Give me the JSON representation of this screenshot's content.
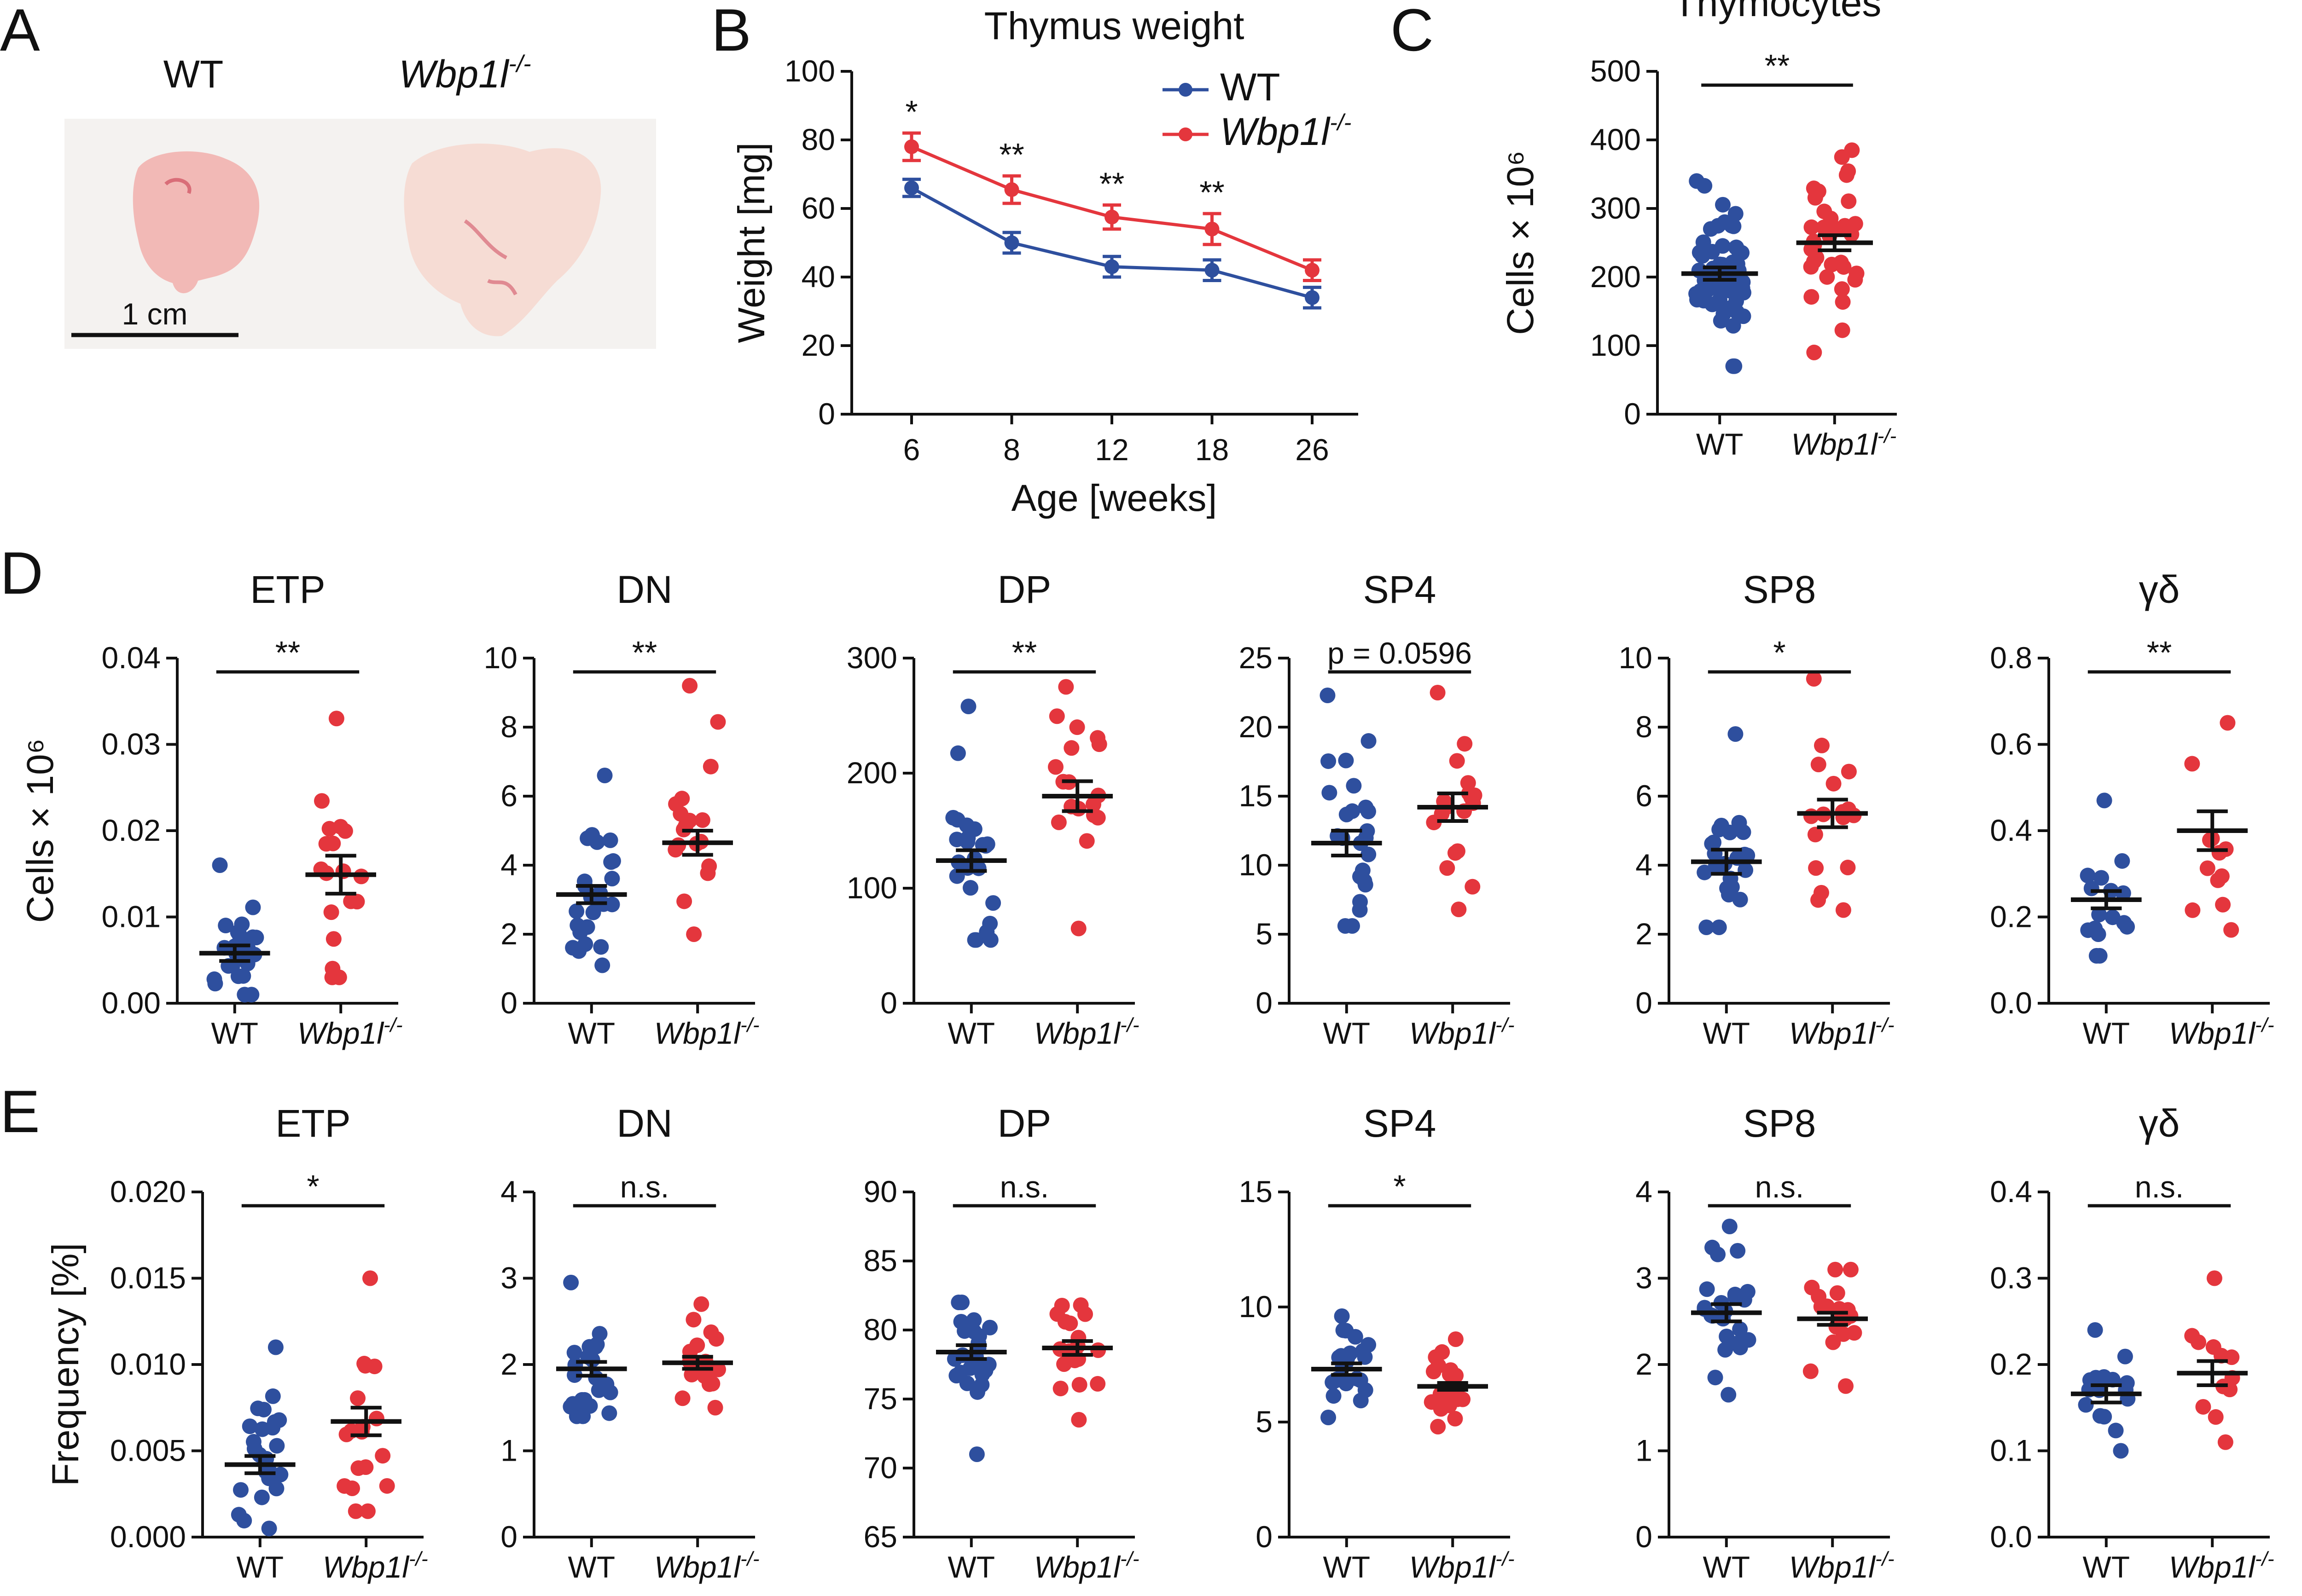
{
  "panels": {
    "A": "A",
    "B": "B",
    "C": "C",
    "D": "D",
    "E": "E"
  },
  "colors": {
    "wt": "#2e4f9e",
    "ko": "#e4363d",
    "axis": "#111111"
  },
  "panelA": {
    "wt_label": "WT",
    "ko_label": "Wbp1l",
    "ko_sup": "-/-",
    "scalebar_label": "1 cm"
  },
  "genotypes": {
    "wt": "WT",
    "ko": "Wbp1l",
    "ko_sup": "-/-"
  },
  "chart_data": [
    {
      "id": "B",
      "type": "line",
      "title": "Thymus weight",
      "xlabel": "Age [weeks]",
      "ylabel": "Weight [mg]",
      "categories": [
        "6",
        "8",
        "12",
        "18",
        "26"
      ],
      "ylim": [
        0,
        100
      ],
      "yticks": [
        0,
        20,
        40,
        60,
        80,
        100
      ],
      "series": [
        {
          "name": "WT",
          "values": [
            66,
            50,
            43,
            42,
            34
          ],
          "err": [
            2.5,
            3,
            3,
            3,
            3
          ]
        },
        {
          "name": "Wbp1l-/-",
          "values": [
            78,
            65.5,
            57.5,
            54,
            42
          ],
          "err": [
            4,
            4,
            3.5,
            4.5,
            3
          ]
        }
      ],
      "significance": [
        "*",
        "**",
        "**",
        "**",
        ""
      ],
      "legend": [
        "WT",
        "Wbp1l-/-"
      ]
    },
    {
      "id": "C",
      "type": "scatter",
      "title": "Thymocytes",
      "ylabel": "Cells × 10⁶",
      "ylim": [
        0,
        500
      ],
      "yticks": [
        0,
        100,
        200,
        300,
        400,
        500
      ],
      "ytick_labels": [
        "0",
        "100",
        "200",
        "300",
        "400",
        "500"
      ],
      "wt": {
        "mean": 205,
        "sem": 9,
        "range": [
          70,
          340
        ],
        "n": 60
      },
      "ko": {
        "mean": 250,
        "sem": 11,
        "range": [
          90,
          385
        ],
        "n": 36
      },
      "sig": "**"
    },
    {
      "id": "D-ETP",
      "type": "scatter",
      "title": "ETP",
      "ylabel": "Cells × 10⁶",
      "ylim": [
        0,
        0.04
      ],
      "yticks": [
        0,
        0.01,
        0.02,
        0.03,
        0.04
      ],
      "ytick_labels": [
        "0.00",
        "0.01",
        "0.02",
        "0.03",
        "0.04"
      ],
      "wt": {
        "mean": 0.0058,
        "sem": 0.0009,
        "range": [
          0.001,
          0.016
        ],
        "n": 24
      },
      "ko": {
        "mean": 0.0149,
        "sem": 0.0022,
        "range": [
          0.003,
          0.033
        ],
        "n": 18
      },
      "sig": "**"
    },
    {
      "id": "D-DN",
      "type": "scatter",
      "title": "DN",
      "ylabel": "",
      "ylim": [
        0,
        10
      ],
      "yticks": [
        0,
        2,
        4,
        6,
        8,
        10
      ],
      "ytick_labels": [
        "0",
        "2",
        "4",
        "6",
        "8",
        "10"
      ],
      "wt": {
        "mean": 3.15,
        "sem": 0.25,
        "range": [
          1.1,
          6.6
        ],
        "n": 24
      },
      "ko": {
        "mean": 4.65,
        "sem": 0.35,
        "range": [
          2.0,
          9.2
        ],
        "n": 18
      },
      "sig": "**"
    },
    {
      "id": "D-DP",
      "type": "scatter",
      "title": "DP",
      "ylabel": "",
      "ylim": [
        0,
        300
      ],
      "yticks": [
        0,
        100,
        200,
        300
      ],
      "ytick_labels": [
        "0",
        "100",
        "200",
        "300"
      ],
      "wt": {
        "mean": 124,
        "sem": 9,
        "range": [
          55,
          258
        ],
        "n": 24
      },
      "ko": {
        "mean": 180,
        "sem": 13,
        "range": [
          65,
          275
        ],
        "n": 18
      },
      "sig": "**"
    },
    {
      "id": "D-SP4",
      "type": "scatter",
      "title": "SP4",
      "ylabel": "",
      "ylim": [
        0,
        25
      ],
      "yticks": [
        0,
        5,
        10,
        15,
        20,
        25
      ],
      "ytick_labels": [
        "0",
        "5",
        "10",
        "15",
        "20",
        "25"
      ],
      "wt": {
        "mean": 11.6,
        "sem": 0.9,
        "range": [
          5.6,
          22.3
        ],
        "n": 24
      },
      "ko": {
        "mean": 14.2,
        "sem": 1.0,
        "range": [
          6.8,
          22.5
        ],
        "n": 18
      },
      "sig": "p = 0.0596"
    },
    {
      "id": "D-SP8",
      "type": "scatter",
      "title": "SP8",
      "ylabel": "",
      "ylim": [
        0,
        10
      ],
      "yticks": [
        0,
        2,
        4,
        6,
        8,
        10
      ],
      "ytick_labels": [
        "0",
        "2",
        "4",
        "6",
        "8",
        "10"
      ],
      "wt": {
        "mean": 4.1,
        "sem": 0.35,
        "range": [
          2.2,
          7.8
        ],
        "n": 24
      },
      "ko": {
        "mean": 5.5,
        "sem": 0.4,
        "range": [
          2.7,
          9.4
        ],
        "n": 18
      },
      "sig": "*"
    },
    {
      "id": "D-gd",
      "type": "scatter",
      "title": "γδ",
      "ylabel": "",
      "ylim": [
        0,
        0.8
      ],
      "yticks": [
        0,
        0.2,
        0.4,
        0.6,
        0.8
      ],
      "ytick_labels": [
        "0.0",
        "0.2",
        "0.4",
        "0.6",
        "0.8"
      ],
      "wt": {
        "mean": 0.24,
        "sem": 0.02,
        "range": [
          0.11,
          0.47
        ],
        "n": 16
      },
      "ko": {
        "mean": 0.4,
        "sem": 0.045,
        "range": [
          0.17,
          0.65
        ],
        "n": 12
      },
      "sig": "**"
    },
    {
      "id": "E-ETP",
      "type": "scatter",
      "title": "ETP",
      "ylabel": "Frequency [%]",
      "ylim": [
        0,
        0.02
      ],
      "yticks": [
        0,
        0.005,
        0.01,
        0.015,
        0.02
      ],
      "ytick_labels": [
        "0.000",
        "0.005",
        "0.010",
        "0.015",
        "0.020"
      ],
      "wt": {
        "mean": 0.0042,
        "sem": 0.0005,
        "range": [
          0.0005,
          0.011
        ],
        "n": 24
      },
      "ko": {
        "mean": 0.0067,
        "sem": 0.0008,
        "range": [
          0.0015,
          0.015
        ],
        "n": 18
      },
      "sig": "*"
    },
    {
      "id": "E-DN",
      "type": "scatter",
      "title": "DN",
      "ylabel": "",
      "ylim": [
        0,
        4
      ],
      "yticks": [
        0,
        1,
        2,
        3,
        4
      ],
      "ytick_labels": [
        "0",
        "1",
        "2",
        "3",
        "4"
      ],
      "wt": {
        "mean": 1.95,
        "sem": 0.08,
        "range": [
          1.4,
          2.95
        ],
        "n": 24
      },
      "ko": {
        "mean": 2.02,
        "sem": 0.07,
        "range": [
          1.5,
          2.7
        ],
        "n": 18
      },
      "sig": "n.s."
    },
    {
      "id": "E-DP",
      "type": "scatter",
      "title": "DP",
      "ylabel": "",
      "ylim": [
        65,
        90
      ],
      "yticks": [
        65,
        70,
        75,
        80,
        85,
        90
      ],
      "ytick_labels": [
        "65",
        "70",
        "75",
        "80",
        "85",
        "90"
      ],
      "wt": {
        "mean": 78.4,
        "sem": 0.5,
        "range": [
          71,
          82
        ],
        "n": 24
      },
      "ko": {
        "mean": 78.7,
        "sem": 0.5,
        "range": [
          73.5,
          81.8
        ],
        "n": 18
      },
      "sig": "n.s."
    },
    {
      "id": "E-SP4",
      "type": "scatter",
      "title": "SP4",
      "ylabel": "",
      "ylim": [
        0,
        15
      ],
      "yticks": [
        0,
        5,
        10,
        15
      ],
      "ytick_labels": [
        "0",
        "5",
        "10",
        "15"
      ],
      "wt": {
        "mean": 7.3,
        "sem": 0.25,
        "range": [
          5.2,
          9.6
        ],
        "n": 24
      },
      "ko": {
        "mean": 6.55,
        "sem": 0.15,
        "range": [
          4.8,
          8.6
        ],
        "n": 18
      },
      "sig": "*"
    },
    {
      "id": "E-SP8",
      "type": "scatter",
      "title": "SP8",
      "ylabel": "",
      "ylim": [
        0,
        4
      ],
      "yticks": [
        0,
        1,
        2,
        3,
        4
      ],
      "ytick_labels": [
        "0",
        "1",
        "2",
        "3",
        "4"
      ],
      "wt": {
        "mean": 2.6,
        "sem": 0.1,
        "range": [
          1.65,
          3.6
        ],
        "n": 24
      },
      "ko": {
        "mean": 2.53,
        "sem": 0.07,
        "range": [
          1.75,
          3.1
        ],
        "n": 18
      },
      "sig": "n.s."
    },
    {
      "id": "E-gd",
      "type": "scatter",
      "title": "γδ",
      "ylabel": "",
      "ylim": [
        0,
        0.4
      ],
      "yticks": [
        0,
        0.1,
        0.2,
        0.3,
        0.4
      ],
      "ytick_labels": [
        "0.0",
        "0.1",
        "0.2",
        "0.3",
        "0.4"
      ],
      "wt": {
        "mean": 0.166,
        "sem": 0.01,
        "range": [
          0.1,
          0.24
        ],
        "n": 16
      },
      "ko": {
        "mean": 0.19,
        "sem": 0.014,
        "range": [
          0.11,
          0.3
        ],
        "n": 12
      },
      "sig": "n.s."
    }
  ]
}
